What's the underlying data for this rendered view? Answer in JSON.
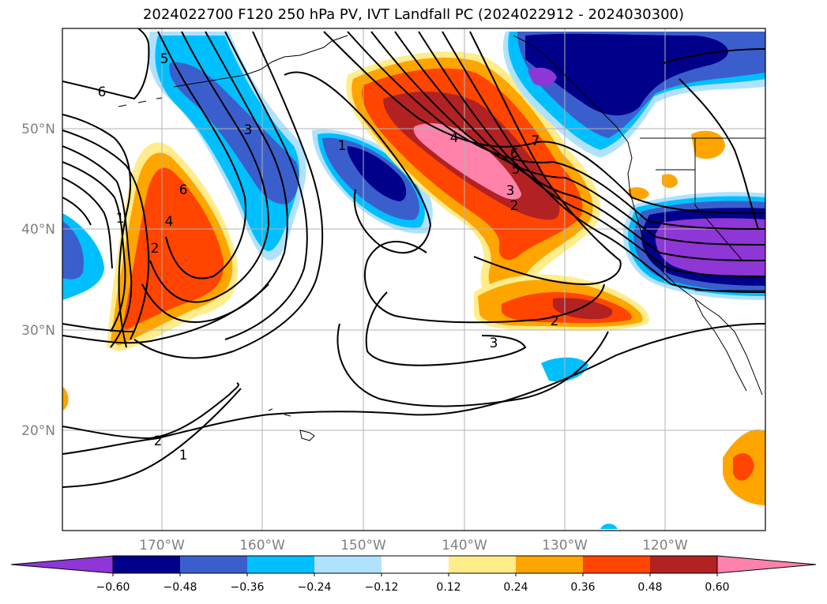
{
  "title": "2024022700 F120 250 hPa PV, IVT Landfall PC (2024022912 - 2024030300)",
  "lat_labels": [
    "50°N",
    "40°N",
    "30°N",
    "20°N"
  ],
  "lon_labels": [
    "170°W",
    "160°W",
    "150°W",
    "140°W",
    "130°W",
    "120°W"
  ],
  "colorbar": {
    "ticks": [
      "−0.60",
      "−0.48",
      "−0.36",
      "−0.24",
      "−0.12",
      "0.12",
      "0.24",
      "0.36",
      "0.48",
      "0.60"
    ],
    "colors": [
      "#8e36d6",
      "#00008b",
      "#3a5fcd",
      "#00bfff",
      "#b0e2ff",
      "#ffffff",
      "#ffec8b",
      "#ffa500",
      "#ff4500",
      "#b22222",
      "#ff82ab"
    ]
  },
  "contour_labels": [
    "6",
    "5",
    "3",
    "1",
    "4",
    "7",
    "6",
    "5",
    "3",
    "2",
    "6",
    "4",
    "2",
    "1",
    "2",
    "3",
    "2",
    "1"
  ],
  "colors": {
    "purple": "#8e36d6",
    "navy": "#00008b",
    "royal": "#3a5fcd",
    "sky": "#00bfff",
    "lightsky": "#b0e2ff",
    "yellow": "#ffec8b",
    "orange": "#ffa500",
    "redorange": "#ff4500",
    "firebrick": "#b22222",
    "pink": "#ff82ab"
  }
}
